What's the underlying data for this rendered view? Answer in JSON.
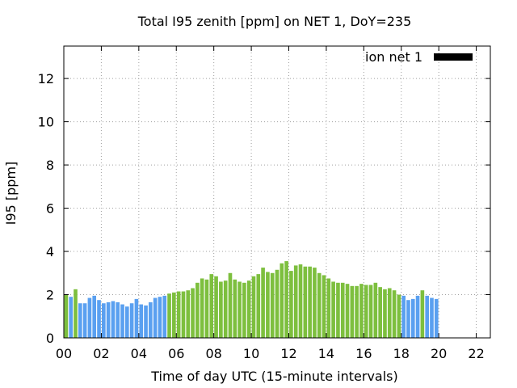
{
  "chart_data": {
    "type": "bar",
    "title": "Total I95 zenith [ppm] on NET 1, DoY=235",
    "xlabel": "Time of day UTC (15-minute intervals)",
    "ylabel": "I95 [ppm]",
    "xlim": [
      0,
      22.75
    ],
    "ylim": [
      0,
      13.5
    ],
    "x_ticks": [
      "00",
      "02",
      "04",
      "06",
      "08",
      "10",
      "12",
      "14",
      "16",
      "18",
      "20",
      "22"
    ],
    "y_ticks": [
      "0",
      "2",
      "4",
      "6",
      "8",
      "10",
      "12"
    ],
    "grid": true,
    "legend": {
      "position": "top-right",
      "label": "ion net 1",
      "color": "#000000"
    },
    "colors": {
      "night": "#5aa0f0",
      "day": "#7dbf3e"
    },
    "interval_hours": 0.25,
    "series": [
      {
        "values": [
          2.0,
          1.9,
          2.25,
          1.6,
          1.6,
          1.85,
          1.95,
          1.75,
          1.6,
          1.65,
          1.7,
          1.65,
          1.55,
          1.45,
          1.6,
          1.8,
          1.55,
          1.5,
          1.65,
          1.85,
          1.9,
          1.95,
          2.05,
          2.1,
          2.15,
          2.15,
          2.2,
          2.3,
          2.55,
          2.75,
          2.7,
          2.95,
          2.85,
          2.6,
          2.65,
          3.0,
          2.7,
          2.6,
          2.55,
          2.65,
          2.85,
          2.95,
          3.25,
          3.05,
          3.0,
          3.15,
          3.45,
          3.55,
          3.1,
          3.35,
          3.4,
          3.3,
          3.3,
          3.25,
          3.0,
          2.9,
          2.75,
          2.6,
          2.55,
          2.55,
          2.5,
          2.4,
          2.4,
          2.5,
          2.45,
          2.45,
          2.55,
          2.35,
          2.25,
          2.3,
          2.2,
          2.0,
          1.95,
          1.75,
          1.8,
          1.95,
          2.2,
          1.95,
          1.85,
          1.8
        ],
        "categories": [
          "day",
          "night",
          "day",
          "night",
          "night",
          "night",
          "night",
          "night",
          "night",
          "night",
          "night",
          "night",
          "night",
          "night",
          "night",
          "night",
          "night",
          "night",
          "night",
          "night",
          "night",
          "night",
          "day",
          "day",
          "day",
          "day",
          "day",
          "day",
          "day",
          "day",
          "day",
          "day",
          "day",
          "day",
          "day",
          "day",
          "day",
          "day",
          "day",
          "day",
          "day",
          "day",
          "day",
          "day",
          "day",
          "day",
          "day",
          "day",
          "day",
          "day",
          "day",
          "day",
          "day",
          "day",
          "day",
          "day",
          "day",
          "day",
          "day",
          "day",
          "day",
          "day",
          "day",
          "day",
          "day",
          "day",
          "day",
          "day",
          "day",
          "day",
          "day",
          "day",
          "night",
          "night",
          "night",
          "night",
          "day",
          "night",
          "night",
          "night"
        ]
      }
    ]
  }
}
